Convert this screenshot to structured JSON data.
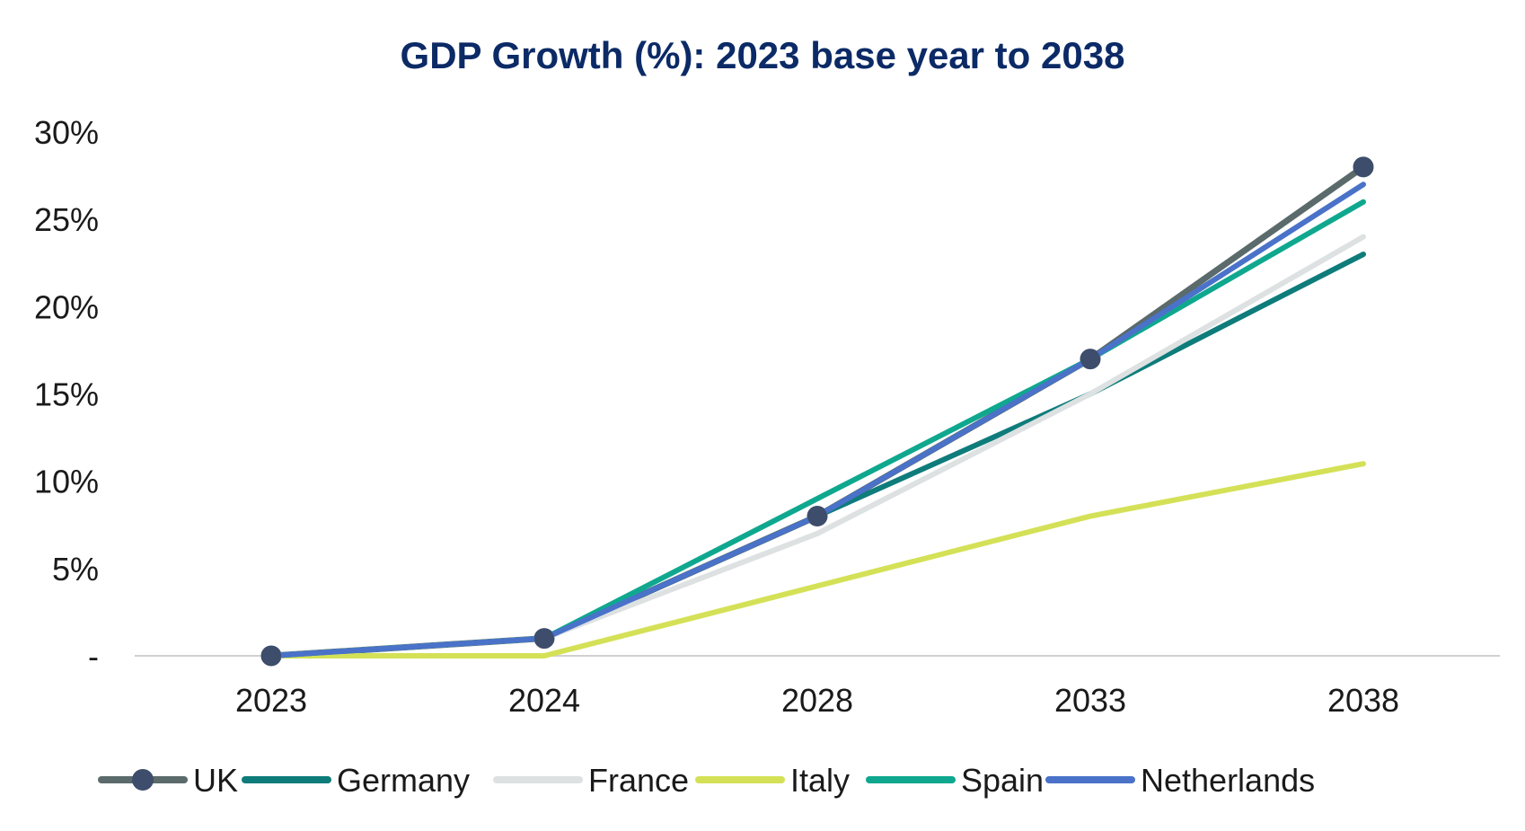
{
  "chart_data": {
    "type": "line",
    "title": "GDP Growth (%): 2023 base year to 2038",
    "xlabel": "",
    "ylabel": "",
    "categories": [
      "2023",
      "2024",
      "2028",
      "2033",
      "2038"
    ],
    "ylim": [
      0,
      30
    ],
    "yticks": [
      0,
      5,
      10,
      15,
      20,
      25,
      30
    ],
    "ytick_labels": [
      "-",
      "5%",
      "10%",
      "15%",
      "20%",
      "25%",
      "30%"
    ],
    "grid": false,
    "legend_position": "bottom",
    "series": [
      {
        "name": "UK",
        "color": "#5b6a6a",
        "marker_color": "#3d4d6b",
        "markers": true,
        "values": [
          0,
          1,
          8,
          17,
          28
        ]
      },
      {
        "name": "Germany",
        "color": "#0e7c7b",
        "markers": false,
        "values": [
          0,
          1,
          8,
          15,
          23
        ]
      },
      {
        "name": "France",
        "color": "#dde1e1",
        "markers": false,
        "values": [
          0,
          1,
          7,
          15,
          24
        ]
      },
      {
        "name": "Italy",
        "color": "#d4e157",
        "markers": false,
        "values": [
          0,
          0,
          4,
          8,
          11
        ]
      },
      {
        "name": "Spain",
        "color": "#0fa88f",
        "markers": false,
        "values": [
          0,
          1,
          9,
          17,
          26
        ]
      },
      {
        "name": "Netherlands",
        "color": "#4a72c9",
        "markers": false,
        "values": [
          0,
          1,
          8,
          17,
          27
        ]
      }
    ]
  }
}
